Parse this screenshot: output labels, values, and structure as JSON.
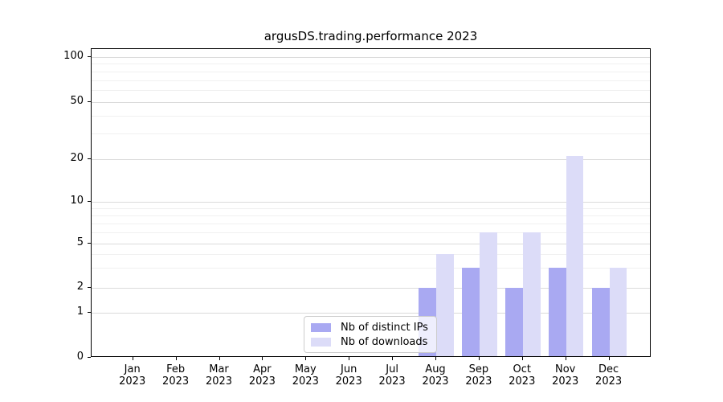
{
  "title": "argusDS.trading.performance 2023",
  "chart_data": {
    "type": "bar",
    "title": "argusDS.trading.performance 2023",
    "x_categories": [
      "Jan",
      "Feb",
      "Mar",
      "Apr",
      "May",
      "Jun",
      "Jul",
      "Aug",
      "Sep",
      "Oct",
      "Nov",
      "Dec"
    ],
    "x_year_label": "2023",
    "series": [
      {
        "name": "Nb of distinct IPs",
        "color": "#a9a9f2",
        "values": [
          0,
          0,
          0,
          0,
          0,
          0,
          0,
          2,
          3,
          2,
          3,
          2
        ]
      },
      {
        "name": "Nb of downloads",
        "color": "#dcdcf8",
        "values": [
          0,
          0,
          0,
          0,
          0,
          0,
          0,
          4,
          6,
          6,
          21,
          3
        ]
      }
    ],
    "y_axis": {
      "scale": "symlog",
      "ticks": [
        0,
        1,
        2,
        5,
        10,
        20,
        50,
        100
      ],
      "tick_labels": [
        "0",
        "1",
        "2",
        "5",
        "10",
        "20",
        "50",
        "100"
      ],
      "minor_gridlines": [
        3,
        4,
        6,
        7,
        8,
        9,
        30,
        40,
        60,
        70,
        80,
        90
      ],
      "range": [
        0,
        130
      ]
    },
    "grid": "horizontal-major-and-minor",
    "legend": {
      "position": "bottom-center",
      "entries": [
        "Nb of distinct IPs",
        "Nb of downloads"
      ]
    }
  },
  "colors": {
    "bar_distinct_ips": "#a9a9f2",
    "bar_downloads": "#dcdcf8",
    "grid_major": "#dbdbdb",
    "grid_minor": "#f0f0f0",
    "spine": "#000000",
    "legend_border": "#cccccc",
    "background": "#ffffff"
  }
}
